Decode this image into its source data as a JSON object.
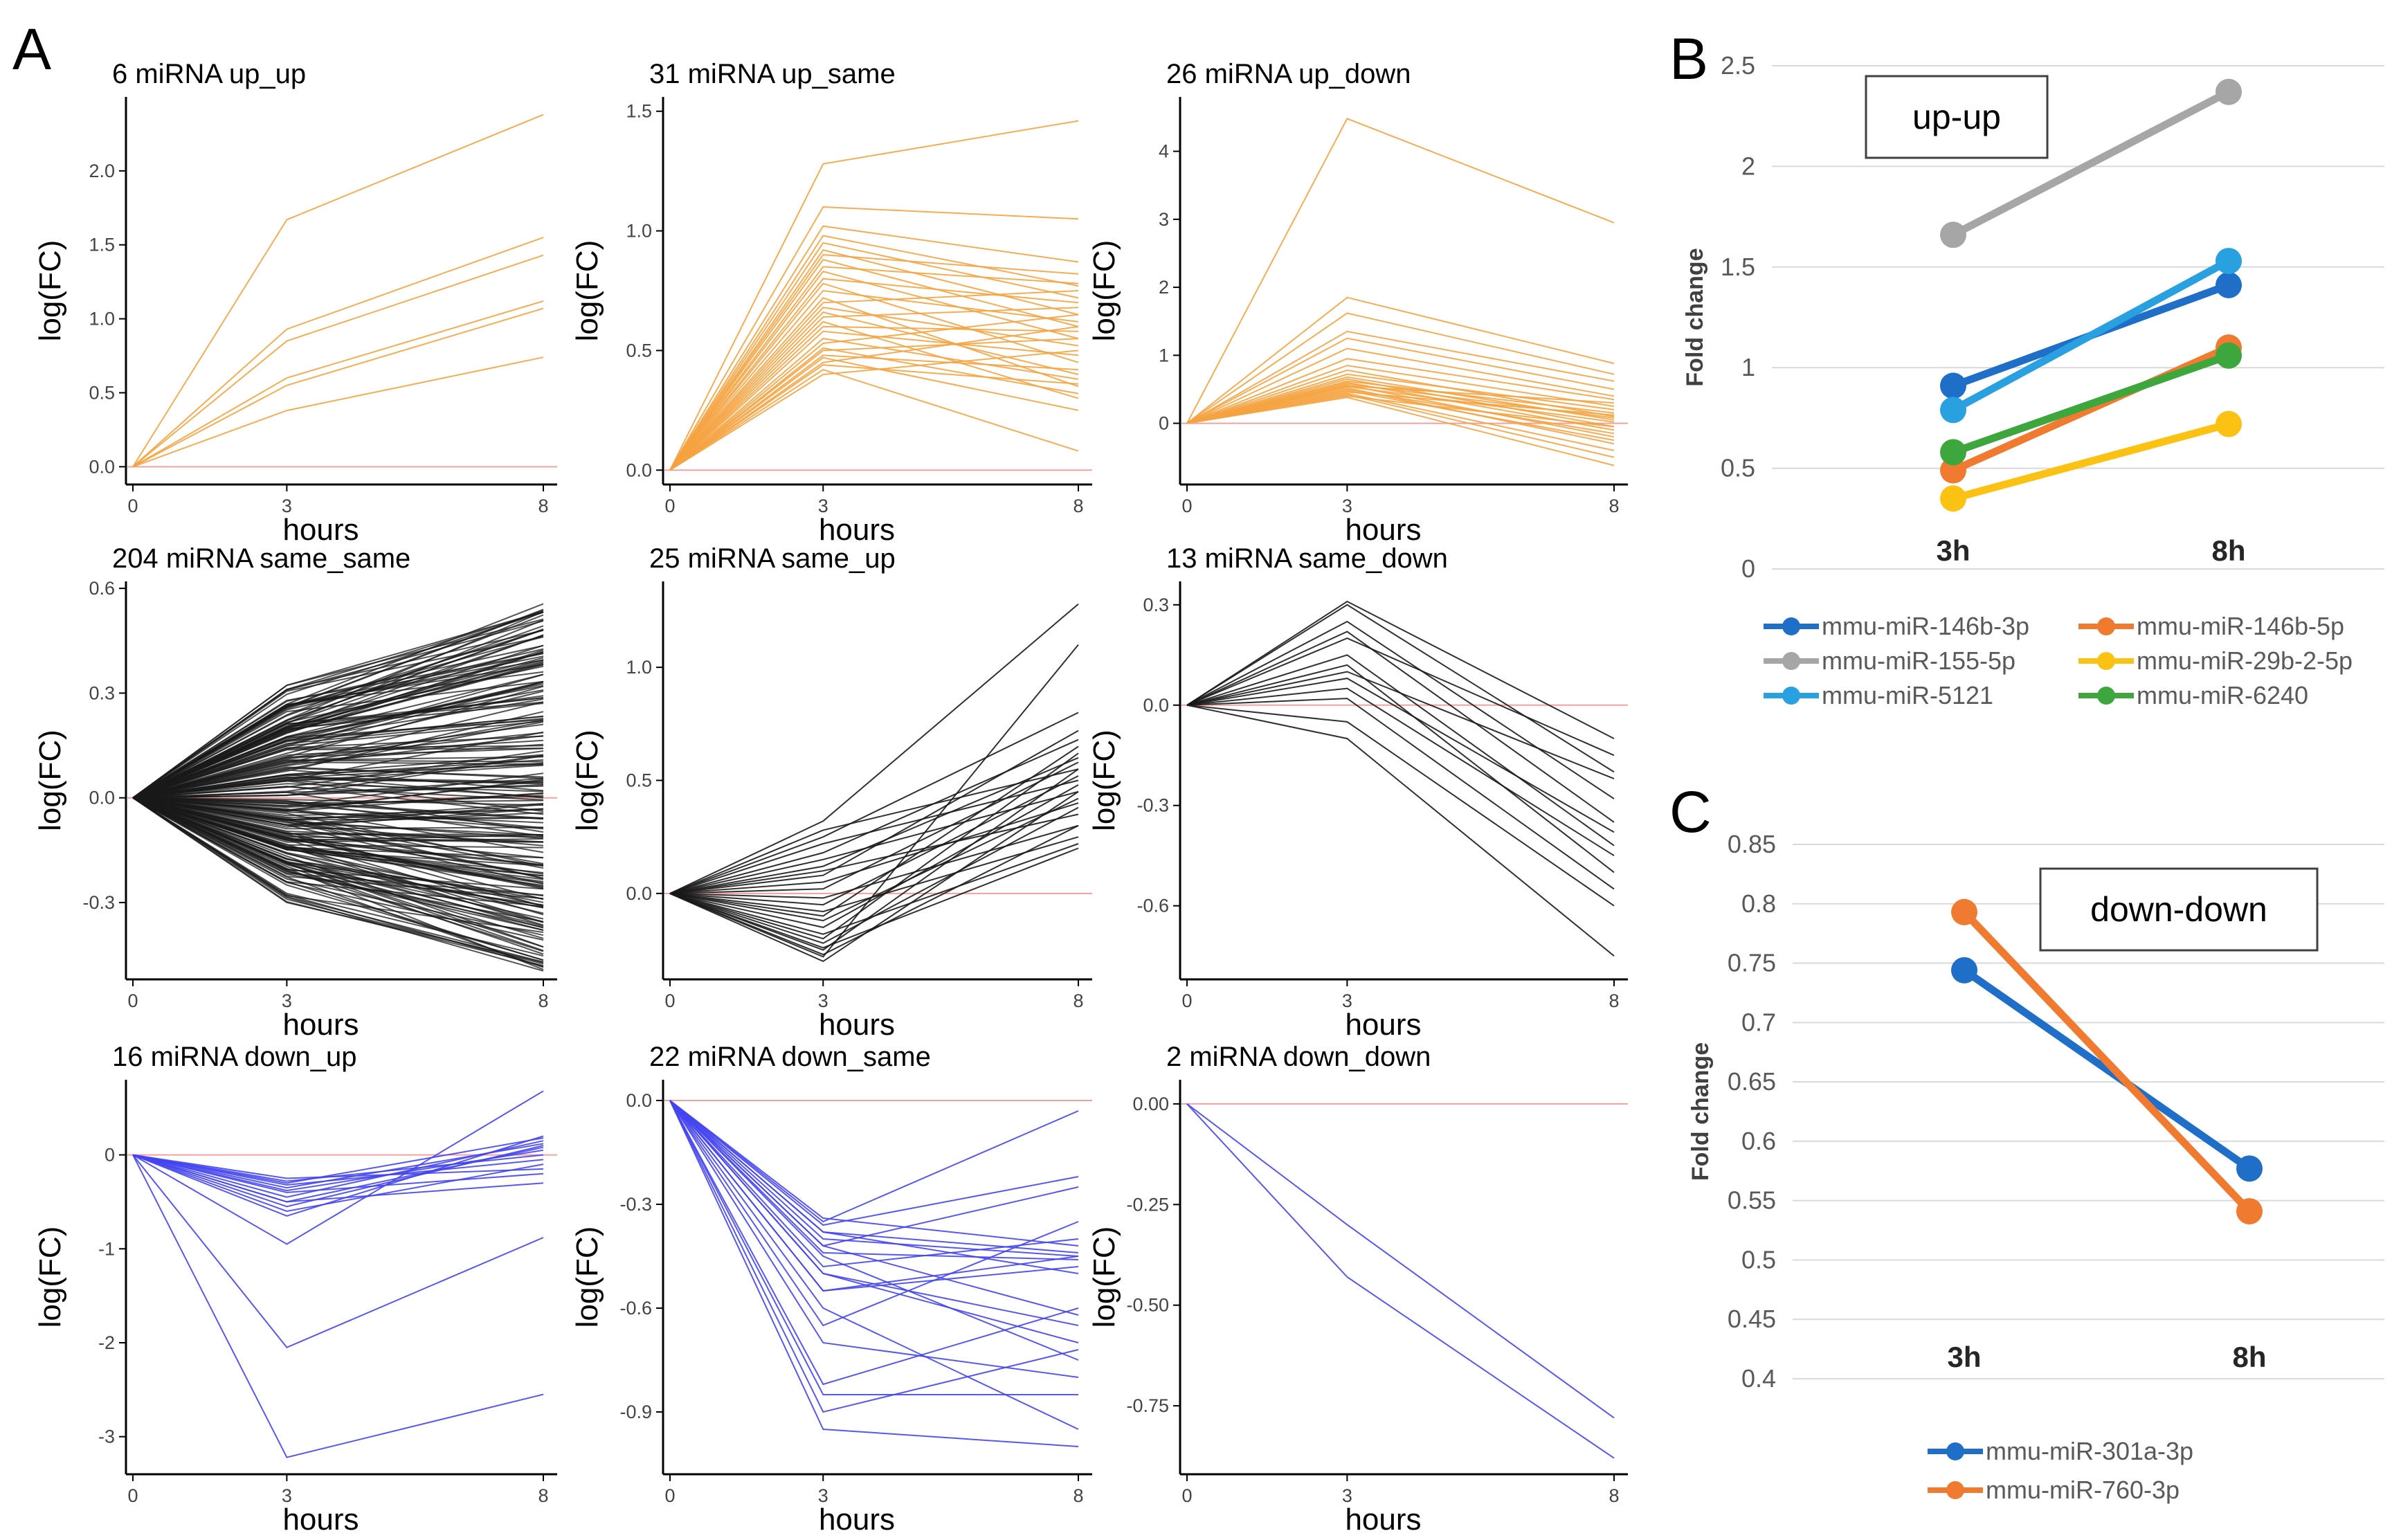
{
  "panel_labels": {
    "a": "A",
    "b": "B",
    "c": "C"
  },
  "colors": {
    "orange": "#f5a340",
    "black": "#1a1a1a",
    "blue": "#4545f0",
    "zero_line": "#f4a0a0",
    "series_blue": "#1f6fc9",
    "series_orange": "#f07a30",
    "series_gray": "#a6a6a6",
    "series_lightblue": "#29a0e0",
    "series_yellow": "#fbc213",
    "series_green": "#3da63d"
  },
  "chart_data": [
    {
      "type": "line",
      "title": "6 miRNA up_up",
      "xlabel": "hours",
      "ylabel": "log(FC)",
      "x": [
        0,
        3,
        8
      ],
      "xticks": [
        "0",
        "3",
        "8"
      ],
      "ylim": [
        -0.12,
        2.5
      ],
      "yticks": [
        0.0,
        0.5,
        1.0,
        1.5,
        2.0
      ],
      "ytick_labels": [
        "0.0",
        "0.5",
        "1.0",
        "1.5",
        "2.0"
      ],
      "color": "orange",
      "series": [
        [
          0,
          1.67,
          2.38
        ],
        [
          0,
          0.93,
          1.55
        ],
        [
          0,
          0.85,
          1.43
        ],
        [
          0,
          0.6,
          1.12
        ],
        [
          0,
          0.55,
          1.07
        ],
        [
          0,
          0.38,
          0.74
        ]
      ]
    },
    {
      "type": "line",
      "title": "31 miRNA up_same",
      "xlabel": "hours",
      "ylabel": "log(FC)",
      "x": [
        0,
        3,
        8
      ],
      "xticks": [
        "0",
        "3",
        "8"
      ],
      "ylim": [
        -0.06,
        1.56
      ],
      "yticks": [
        0.0,
        0.5,
        1.0,
        1.5
      ],
      "ytick_labels": [
        "0.0",
        "0.5",
        "1.0",
        "1.5"
      ],
      "color": "orange",
      "series": [
        [
          0,
          1.28,
          1.46
        ],
        [
          0,
          1.1,
          1.05
        ],
        [
          0,
          1.02,
          0.87
        ],
        [
          0,
          0.98,
          0.77
        ],
        [
          0,
          0.95,
          0.72
        ],
        [
          0,
          0.92,
          0.65
        ],
        [
          0,
          0.9,
          0.82
        ],
        [
          0,
          0.88,
          0.6
        ],
        [
          0,
          0.85,
          0.78
        ],
        [
          0,
          0.83,
          0.55
        ],
        [
          0,
          0.8,
          0.7
        ],
        [
          0,
          0.78,
          0.45
        ],
        [
          0,
          0.75,
          0.62
        ],
        [
          0,
          0.72,
          0.35
        ],
        [
          0,
          0.7,
          0.75
        ],
        [
          0,
          0.68,
          0.52
        ],
        [
          0,
          0.66,
          0.4
        ],
        [
          0,
          0.64,
          0.68
        ],
        [
          0,
          0.62,
          0.3
        ],
        [
          0,
          0.6,
          0.58
        ],
        [
          0,
          0.58,
          0.48
        ],
        [
          0,
          0.55,
          0.38
        ],
        [
          0,
          0.53,
          0.65
        ],
        [
          0,
          0.51,
          0.32
        ],
        [
          0,
          0.5,
          0.55
        ],
        [
          0,
          0.48,
          0.42
        ],
        [
          0,
          0.47,
          0.25
        ],
        [
          0,
          0.45,
          0.6
        ],
        [
          0,
          0.44,
          0.36
        ],
        [
          0,
          0.42,
          0.08
        ],
        [
          0,
          0.4,
          0.5
        ]
      ]
    },
    {
      "type": "line",
      "title": "26 miRNA up_down",
      "xlabel": "hours",
      "ylabel": "log(FC)",
      "x": [
        0,
        3,
        8
      ],
      "xticks": [
        "0",
        "3",
        "8"
      ],
      "ylim": [
        -0.9,
        4.8
      ],
      "yticks": [
        0,
        1,
        2,
        3,
        4
      ],
      "ytick_labels": [
        "0",
        "1",
        "2",
        "3",
        "4"
      ],
      "color": "orange",
      "series": [
        [
          0,
          4.48,
          2.95
        ],
        [
          0,
          1.85,
          0.88
        ],
        [
          0,
          1.62,
          0.72
        ],
        [
          0,
          1.35,
          0.62
        ],
        [
          0,
          1.25,
          0.5
        ],
        [
          0,
          1.1,
          0.4
        ],
        [
          0,
          0.95,
          0.35
        ],
        [
          0,
          0.85,
          0.25
        ],
        [
          0,
          0.78,
          0.1
        ],
        [
          0,
          0.72,
          0.2
        ],
        [
          0,
          0.68,
          0.05
        ],
        [
          0,
          0.65,
          -0.05
        ],
        [
          0,
          0.62,
          0.15
        ],
        [
          0,
          0.6,
          -0.1
        ],
        [
          0,
          0.58,
          0.08
        ],
        [
          0,
          0.56,
          -0.2
        ],
        [
          0,
          0.54,
          0.02
        ],
        [
          0,
          0.52,
          -0.3
        ],
        [
          0,
          0.5,
          -0.15
        ],
        [
          0,
          0.48,
          -0.25
        ],
        [
          0,
          0.46,
          0.12
        ],
        [
          0,
          0.44,
          -0.4
        ],
        [
          0,
          0.42,
          -0.5
        ],
        [
          0,
          0.4,
          -0.05
        ],
        [
          0,
          0.38,
          -0.62
        ],
        [
          0,
          0.55,
          0.3
        ]
      ]
    },
    {
      "type": "line",
      "title": "204 miRNA same_same",
      "xlabel": "hours",
      "ylabel": "log(FC)",
      "x": [
        0,
        3,
        8
      ],
      "xticks": [
        "0",
        "3",
        "8"
      ],
      "ylim": [
        -0.52,
        0.62
      ],
      "yticks": [
        -0.3,
        0.0,
        0.3,
        0.6
      ],
      "ytick_labels": [
        "-0.3",
        "0.0",
        "0.3",
        "0.6"
      ],
      "color": "black",
      "generated_count": 204,
      "x3_range": [
        -0.3,
        0.33
      ],
      "x8_range": [
        -0.5,
        0.56
      ],
      "seed": 7,
      "series": []
    },
    {
      "type": "line",
      "title": "25 miRNA same_up",
      "xlabel": "hours",
      "ylabel": "log(FC)",
      "x": [
        0,
        3,
        8
      ],
      "xticks": [
        "0",
        "3",
        "8"
      ],
      "ylim": [
        -0.38,
        1.38
      ],
      "yticks": [
        0.0,
        0.5,
        1.0
      ],
      "ytick_labels": [
        "0.0",
        "0.5",
        "1.0"
      ],
      "color": "black",
      "series": [
        [
          0,
          0.32,
          1.28
        ],
        [
          0,
          0.28,
          0.55
        ],
        [
          0,
          0.25,
          0.8
        ],
        [
          0,
          0.22,
          0.5
        ],
        [
          0,
          0.18,
          0.68
        ],
        [
          0,
          0.15,
          0.45
        ],
        [
          0,
          0.12,
          0.6
        ],
        [
          0,
          0.1,
          0.35
        ],
        [
          0,
          0.08,
          0.72
        ],
        [
          0,
          0.05,
          0.4
        ],
        [
          0,
          0.02,
          0.58
        ],
        [
          0,
          -0.02,
          0.3
        ],
        [
          0,
          -0.05,
          0.52
        ],
        [
          0,
          -0.08,
          0.25
        ],
        [
          0,
          -0.1,
          0.65
        ],
        [
          0,
          -0.12,
          0.42
        ],
        [
          0,
          -0.15,
          0.48
        ],
        [
          0,
          -0.18,
          0.22
        ],
        [
          0,
          -0.2,
          0.62
        ],
        [
          0,
          -0.22,
          0.38
        ],
        [
          0,
          -0.25,
          0.55
        ],
        [
          0,
          -0.27,
          0.3
        ],
        [
          0,
          -0.28,
          1.1
        ],
        [
          0,
          -0.3,
          0.45
        ],
        [
          0,
          -0.24,
          0.2
        ]
      ]
    },
    {
      "type": "line",
      "title": "13 miRNA same_down",
      "xlabel": "hours",
      "ylabel": "log(FC)",
      "x": [
        0,
        3,
        8
      ],
      "xticks": [
        "0",
        "3",
        "8"
      ],
      "ylim": [
        -0.82,
        0.37
      ],
      "yticks": [
        -0.6,
        -0.3,
        0.0,
        0.3
      ],
      "ytick_labels": [
        "-0.6",
        "-0.3",
        "0.0",
        "0.3"
      ],
      "color": "black",
      "series": [
        [
          0,
          0.31,
          -0.1
        ],
        [
          0,
          0.3,
          -0.2
        ],
        [
          0,
          0.25,
          -0.28
        ],
        [
          0,
          0.22,
          -0.35
        ],
        [
          0,
          0.2,
          -0.15
        ],
        [
          0,
          0.15,
          -0.42
        ],
        [
          0,
          0.12,
          -0.5
        ],
        [
          0,
          0.1,
          -0.22
        ],
        [
          0,
          0.08,
          -0.38
        ],
        [
          0,
          0.05,
          -0.45
        ],
        [
          0,
          0.02,
          -0.55
        ],
        [
          0,
          -0.05,
          -0.6
        ],
        [
          0,
          -0.1,
          -0.75
        ]
      ]
    },
    {
      "type": "line",
      "title": "16 miRNA down_up",
      "xlabel": "hours",
      "ylabel": "log(FC)",
      "x": [
        0,
        3,
        8
      ],
      "xticks": [
        "0",
        "3",
        "8"
      ],
      "ylim": [
        -3.4,
        0.8
      ],
      "yticks": [
        -3,
        -2,
        -1,
        0
      ],
      "ytick_labels": [
        "-3",
        "-2",
        "-1",
        "0"
      ],
      "color": "blue",
      "series": [
        [
          0,
          -3.22,
          -2.55
        ],
        [
          0,
          -2.05,
          -0.88
        ],
        [
          0,
          -0.95,
          0.68
        ],
        [
          0,
          -0.65,
          0.2
        ],
        [
          0,
          -0.6,
          -0.1
        ],
        [
          0,
          -0.55,
          0.1
        ],
        [
          0,
          -0.5,
          -0.3
        ],
        [
          0,
          -0.45,
          0.15
        ],
        [
          0,
          -0.4,
          -0.2
        ],
        [
          0,
          -0.38,
          0.05
        ],
        [
          0,
          -0.35,
          0.12
        ],
        [
          0,
          -0.32,
          -0.05
        ],
        [
          0,
          -0.3,
          0.18
        ],
        [
          0,
          -0.28,
          0.0
        ],
        [
          0,
          -0.25,
          -0.15
        ],
        [
          0,
          -0.5,
          0.08
        ]
      ]
    },
    {
      "type": "line",
      "title": "22 miRNA down_same",
      "xlabel": "hours",
      "ylabel": "log(FC)",
      "x": [
        0,
        3,
        8
      ],
      "xticks": [
        "0",
        "3",
        "8"
      ],
      "ylim": [
        -1.08,
        0.06
      ],
      "yticks": [
        -0.9,
        -0.6,
        -0.3,
        0.0
      ],
      "ytick_labels": [
        "-0.9",
        "-0.6",
        "-0.3",
        "0.0"
      ],
      "color": "blue",
      "series": [
        [
          0,
          -0.95,
          -1.0
        ],
        [
          0,
          -0.9,
          -0.72
        ],
        [
          0,
          -0.85,
          -0.85
        ],
        [
          0,
          -0.82,
          -0.6
        ],
        [
          0,
          -0.7,
          -0.8
        ],
        [
          0,
          -0.6,
          -0.95
        ],
        [
          0,
          -0.55,
          -0.45
        ],
        [
          0,
          -0.5,
          -0.65
        ],
        [
          0,
          -0.48,
          -0.4
        ],
        [
          0,
          -0.45,
          -0.75
        ],
        [
          0,
          -0.42,
          -0.25
        ],
        [
          0,
          -0.4,
          -0.45
        ],
        [
          0,
          -0.38,
          -0.5
        ],
        [
          0,
          -0.36,
          -0.22
        ],
        [
          0,
          -0.35,
          -0.03
        ],
        [
          0,
          -0.34,
          -0.42
        ],
        [
          0,
          -0.42,
          -0.62
        ],
        [
          0,
          -0.5,
          -0.7
        ],
        [
          0,
          -0.55,
          -0.48
        ],
        [
          0,
          -0.65,
          -0.35
        ],
        [
          0,
          -0.38,
          -0.44
        ],
        [
          0,
          -0.44,
          -0.46
        ]
      ]
    },
    {
      "type": "line",
      "title": "2 miRNA down_down",
      "xlabel": "hours",
      "ylabel": "log(FC)",
      "x": [
        0,
        3,
        8
      ],
      "xticks": [
        "0",
        "3",
        "8"
      ],
      "ylim": [
        -0.92,
        0.06
      ],
      "yticks": [
        -0.75,
        -0.5,
        -0.25,
        0.0
      ],
      "ytick_labels": [
        "-0.75",
        "-0.50",
        "-0.25",
        "0.00"
      ],
      "color": "blue",
      "series": [
        [
          0,
          -0.43,
          -0.88
        ],
        [
          0,
          -0.3,
          -0.78
        ]
      ]
    },
    {
      "type": "line",
      "categories": [
        "3h",
        "8h"
      ],
      "ylabel": "Fold change",
      "ylim": [
        0,
        2.5
      ],
      "yticks": [
        0,
        0.5,
        1,
        1.5,
        2,
        2.5
      ],
      "ytick_labels": [
        "0",
        "0.5",
        "1",
        "1.5",
        "2",
        "2.5"
      ],
      "box_label": "up-up",
      "grid": true,
      "legend_position": "bottom",
      "series": [
        {
          "name": "mmu-miR-146b-3p",
          "color": "series_blue",
          "values": [
            0.91,
            1.41
          ]
        },
        {
          "name": "mmu-miR-146b-5p",
          "color": "series_orange",
          "values": [
            0.49,
            1.1
          ]
        },
        {
          "name": "mmu-miR-155-5p",
          "color": "series_gray",
          "values": [
            1.66,
            2.37
          ]
        },
        {
          "name": "mmu-miR-29b-2-5p",
          "color": "series_yellow",
          "values": [
            0.35,
            0.72
          ]
        },
        {
          "name": "mmu-miR-5121",
          "color": "series_lightblue",
          "values": [
            0.79,
            1.53
          ]
        },
        {
          "name": "mmu-miR-6240",
          "color": "series_green",
          "values": [
            0.58,
            1.06
          ]
        }
      ]
    },
    {
      "type": "line",
      "categories": [
        "3h",
        "8h"
      ],
      "ylabel": "Fold change",
      "ylim": [
        0.4,
        0.85
      ],
      "yticks": [
        0.4,
        0.45,
        0.5,
        0.55,
        0.6,
        0.65,
        0.7,
        0.75,
        0.8,
        0.85
      ],
      "ytick_labels": [
        "0.4",
        "0.45",
        "0.5",
        "0.55",
        "0.6",
        "0.65",
        "0.7",
        "0.75",
        "0.8",
        "0.85"
      ],
      "box_label": "down-down",
      "grid": true,
      "legend_position": "bottom",
      "series": [
        {
          "name": "mmu-miR-301a-3p",
          "color": "series_blue",
          "values": [
            0.744,
            0.577
          ]
        },
        {
          "name": "mmu-miR-760-3p",
          "color": "series_orange",
          "values": [
            0.793,
            0.541
          ]
        }
      ]
    }
  ]
}
